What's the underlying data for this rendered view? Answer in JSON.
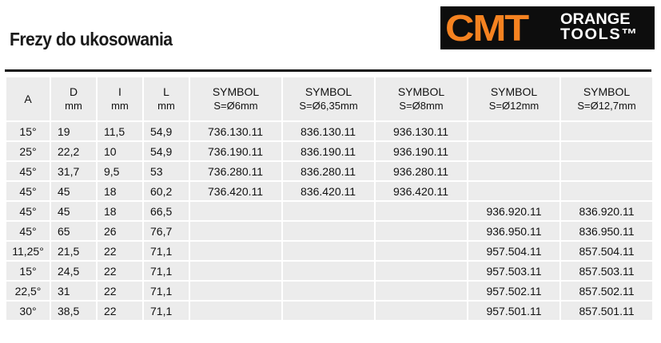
{
  "title": "Frezy do ukosowania",
  "logo": {
    "brand": "CMT",
    "line1": "ORANGE",
    "line2": "TOOLS™",
    "brand_color": "#f58220",
    "background": "#0d0d0d"
  },
  "table": {
    "headers": [
      {
        "top": "A",
        "unit": ""
      },
      {
        "top": "D",
        "unit": "mm"
      },
      {
        "top": "I",
        "unit": "mm"
      },
      {
        "top": "L",
        "unit": "mm"
      },
      {
        "top": "SYMBOL",
        "unit": "S=Ø6mm"
      },
      {
        "top": "SYMBOL",
        "unit": "S=Ø6,35mm"
      },
      {
        "top": "SYMBOL",
        "unit": "S=Ø8mm"
      },
      {
        "top": "SYMBOL",
        "unit": "S=Ø12mm"
      },
      {
        "top": "SYMBOL",
        "unit": "S=Ø12,7mm"
      }
    ],
    "rows": [
      [
        "15°",
        "19",
        "11,5",
        "54,9",
        "736.130.11",
        "836.130.11",
        "936.130.11",
        "",
        ""
      ],
      [
        "25°",
        "22,2",
        "10",
        "54,9",
        "736.190.11",
        "836.190.11",
        "936.190.11",
        "",
        ""
      ],
      [
        "45°",
        "31,7",
        "9,5",
        "53",
        "736.280.11",
        "836.280.11",
        "936.280.11",
        "",
        ""
      ],
      [
        "45°",
        "45",
        "18",
        "60,2",
        "736.420.11",
        "836.420.11",
        "936.420.11",
        "",
        ""
      ],
      [
        "45°",
        "45",
        "18",
        "66,5",
        "",
        "",
        "",
        "936.920.11",
        "836.920.11"
      ],
      [
        "45°",
        "65",
        "26",
        "76,7",
        "",
        "",
        "",
        "936.950.11",
        "836.950.11"
      ],
      [
        "11,25°",
        "21,5",
        "22",
        "71,1",
        "",
        "",
        "",
        "957.504.11",
        "857.504.11"
      ],
      [
        "15°",
        "24,5",
        "22",
        "71,1",
        "",
        "",
        "",
        "957.503.11",
        "857.503.11"
      ],
      [
        "22,5°",
        "31",
        "22",
        "71,1",
        "",
        "",
        "",
        "957.502.11",
        "857.502.11"
      ],
      [
        "30°",
        "38,5",
        "22",
        "71,1",
        "",
        "",
        "",
        "957.501.11",
        "857.501.11"
      ]
    ]
  }
}
